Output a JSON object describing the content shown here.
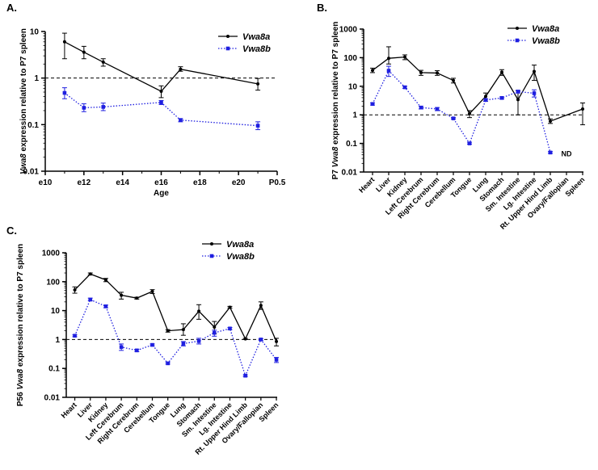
{
  "colors": {
    "vwa8a": "#000000",
    "vwa8b": "#1f1fe0",
    "reference": "#000000"
  },
  "legend": {
    "a": "Vwa8a",
    "b": "Vwa8b"
  },
  "chart_data": [
    {
      "id": "A",
      "type": "line",
      "panel_label": "A.",
      "scale": "log",
      "ylim": [
        0.01,
        10
      ],
      "yticks": [
        "0.01",
        "0.1",
        "1",
        "10"
      ],
      "ylabel_prefix": "Vwa8",
      "ylabel_rest": " expression relative to P7 spleen",
      "xlabel": "Age",
      "xticks": [
        "e10",
        "e12",
        "e14",
        "e16",
        "e18",
        "e20",
        "P0.5"
      ],
      "x_range": [
        10,
        22
      ],
      "reference_line": 1,
      "legend_position": "top-right",
      "series": [
        {
          "name": "Vwa8a",
          "style": "solid",
          "points": [
            {
              "x": 11,
              "y": 6.0,
              "lo": 2.6,
              "hi": 9.2
            },
            {
              "x": 12,
              "y": 3.6,
              "lo": 2.6,
              "hi": 4.8
            },
            {
              "x": 13,
              "y": 2.2,
              "lo": 1.8,
              "hi": 2.6
            },
            {
              "x": 16,
              "y": 0.52,
              "lo": 0.38,
              "hi": 0.68
            },
            {
              "x": 17,
              "y": 1.55,
              "lo": 1.4,
              "hi": 1.75
            },
            {
              "x": 21,
              "y": 0.75,
              "lo": 0.55,
              "hi": 0.98
            }
          ]
        },
        {
          "name": "Vwa8b",
          "style": "dotted",
          "points": [
            {
              "x": 11,
              "y": 0.48,
              "lo": 0.36,
              "hi": 0.62
            },
            {
              "x": 12,
              "y": 0.23,
              "lo": 0.19,
              "hi": 0.28
            },
            {
              "x": 13,
              "y": 0.24,
              "lo": 0.2,
              "hi": 0.29
            },
            {
              "x": 16,
              "y": 0.3,
              "lo": 0.27,
              "hi": 0.33
            },
            {
              "x": 17,
              "y": 0.125,
              "lo": 0.115,
              "hi": 0.135
            },
            {
              "x": 21,
              "y": 0.095,
              "lo": 0.078,
              "hi": 0.115
            }
          ]
        }
      ]
    },
    {
      "id": "B",
      "type": "line",
      "panel_label": "B.",
      "scale": "log",
      "ylim": [
        0.01,
        1000
      ],
      "yticks": [
        "0.01",
        "0.1",
        "1",
        "10",
        "100",
        "1000"
      ],
      "ylabel_prefix": "P7 ",
      "ylabel_italic": "Vwa8",
      "ylabel_rest": " expression relative to P7 spleen",
      "categories": [
        "Heart",
        "Liver",
        "Kidney",
        "Left Cerebrum",
        "Right Cerebrum",
        "Cerebellum",
        "Tongue",
        "Lung",
        "Stomach",
        "Sm. Intestine",
        "Lg. Intestine",
        "Rt. Upper Hind Limb",
        "Ovary/Fallopian",
        "Spleen"
      ],
      "reference_line": 1,
      "annotation": "ND",
      "legend_position": "top-right",
      "series": [
        {
          "name": "Vwa8a",
          "style": "solid",
          "values": [
            36,
            95,
            105,
            30,
            29,
            16,
            1.1,
            4.4,
            31,
            3.4,
            33,
            0.6,
            null,
            1.6
          ],
          "lo": [
            30,
            60,
            85,
            24,
            24,
            13,
            0.8,
            3.0,
            24,
            1.0,
            16,
            0.5,
            null,
            0.45
          ],
          "hi": [
            43,
            240,
            125,
            36,
            35,
            19,
            1.4,
            5.8,
            38,
            7.0,
            55,
            0.72,
            null,
            2.6
          ]
        },
        {
          "name": "Vwa8b",
          "style": "dotted",
          "values": [
            2.4,
            35,
            9.2,
            1.8,
            1.6,
            0.75,
            0.1,
            3.3,
            3.9,
            6.5,
            5.7,
            0.048,
            null,
            null
          ],
          "lo": [
            2.2,
            22,
            8.4,
            1.6,
            1.4,
            0.72,
            0.095,
            3.0,
            3.6,
            5.8,
            4.2,
            0.045,
            null,
            null
          ],
          "hi": [
            2.6,
            50,
            10,
            2.0,
            1.8,
            0.8,
            0.11,
            3.6,
            4.2,
            7.2,
            7.5,
            0.052,
            null,
            null
          ]
        }
      ]
    },
    {
      "id": "C",
      "type": "line",
      "panel_label": "C.",
      "scale": "log",
      "ylim": [
        0.01,
        1000
      ],
      "yticks": [
        "0.01",
        "0.1",
        "1",
        "10",
        "100",
        "1000"
      ],
      "ylabel_prefix": "P56 ",
      "ylabel_italic": "Vwa8",
      "ylabel_rest": " expression relative to P7 spleen",
      "categories": [
        "Heart",
        "Liver",
        "Kidney",
        "Left Cerebrum",
        "Right Cerebrum",
        "Cerebellum",
        "Tongue",
        "Lung",
        "Stomach",
        "Sm. Intestine",
        "Lg. Intestine",
        "Rt. Upper Hind Limb",
        "Ovary/Fallopian",
        "Spleen"
      ],
      "reference_line": 1,
      "legend_position": "top-right",
      "series": [
        {
          "name": "Vwa8a",
          "style": "solid",
          "values": [
            52,
            185,
            115,
            34,
            27,
            46,
            2.0,
            2.2,
            9.5,
            2.7,
            13,
            1.05,
            15,
            0.85
          ],
          "lo": [
            40,
            170,
            100,
            25,
            25,
            39,
            1.8,
            1.4,
            5.0,
            1.6,
            12,
            1.0,
            11,
            0.6
          ],
          "hi": [
            66,
            200,
            130,
            43,
            29,
            53,
            2.2,
            3.5,
            16,
            4.2,
            14,
            1.1,
            20,
            1.1
          ]
        },
        {
          "name": "Vwa8b",
          "style": "dotted",
          "values": [
            1.35,
            24,
            14,
            0.55,
            0.42,
            0.65,
            0.15,
            0.72,
            0.88,
            1.7,
            2.4,
            0.056,
            1.0,
            0.2
          ],
          "lo": [
            1.25,
            22,
            12.5,
            0.42,
            0.38,
            0.6,
            0.14,
            0.6,
            0.7,
            1.3,
            2.2,
            0.052,
            0.93,
            0.16
          ],
          "hi": [
            1.45,
            27,
            15.5,
            0.7,
            0.46,
            0.7,
            0.16,
            0.85,
            1.1,
            2.1,
            2.6,
            0.06,
            1.07,
            0.24
          ]
        }
      ]
    }
  ]
}
